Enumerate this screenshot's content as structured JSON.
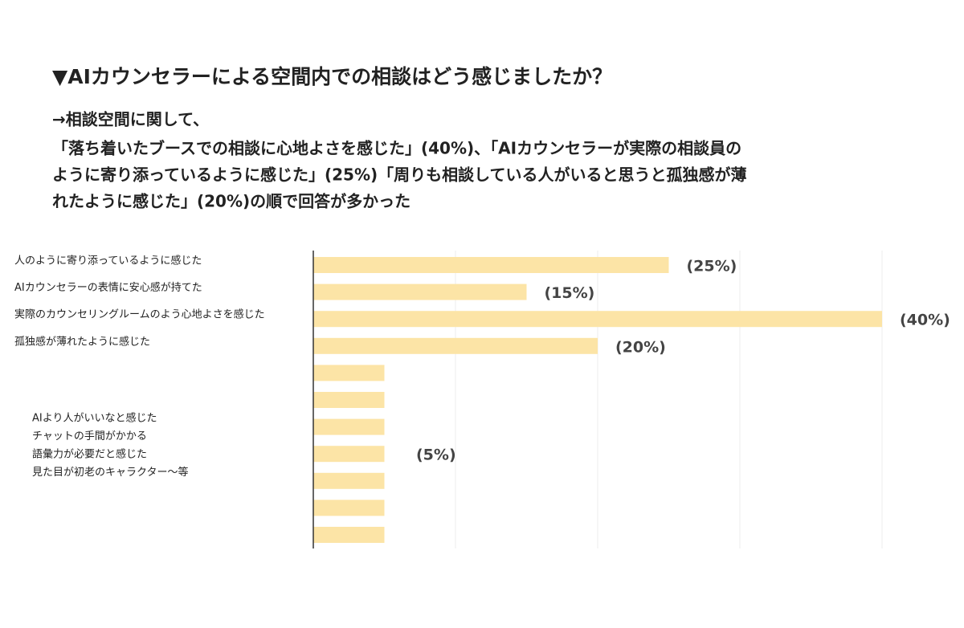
{
  "title": "▼AIカウンセラーによる空間内での相談はどう感じましたか？",
  "summary": [
    "→相談空間に関して、",
    "「落ち着いたブースでの相談に心地よさを感じた」(40%)、「AIカウンセラーが実際の相談員の",
    "ように寄り添っているように感じた」(25%)「周りも相談している人がいると思うと孤独感が薄",
    "れたように感じた」(20%)の順で回答が多かった"
  ],
  "chart_data": {
    "type": "bar",
    "orientation": "horizontal",
    "categories": [
      "人のように寄り添っているように感じた",
      "AIカウンセラーの表情に安心感が持てた",
      "実際のカウンセリングルームのよう心地よさを感じた",
      "孤独感が薄れたように感じた",
      null,
      null,
      null,
      null,
      null,
      null,
      null
    ],
    "values": [
      25,
      15,
      40,
      20,
      5,
      5,
      5,
      5,
      5,
      5,
      5
    ],
    "value_labels": [
      "(25%)",
      "(15%)",
      "(40%)",
      "(20%)",
      null,
      null,
      null,
      null,
      null,
      null,
      null
    ],
    "color": "#fce4a6",
    "xlim": [
      0,
      40
    ],
    "xticks": [
      0,
      10,
      20,
      30,
      40
    ],
    "grid": true,
    "annotation": {
      "lines": [
        "AIより人がいいなと感じた",
        "チャットの手間がかかる",
        "語彙力が必要だと感じた",
        "見た目が初老のキャラクター〜等"
      ],
      "value_label": "(5%)"
    }
  }
}
